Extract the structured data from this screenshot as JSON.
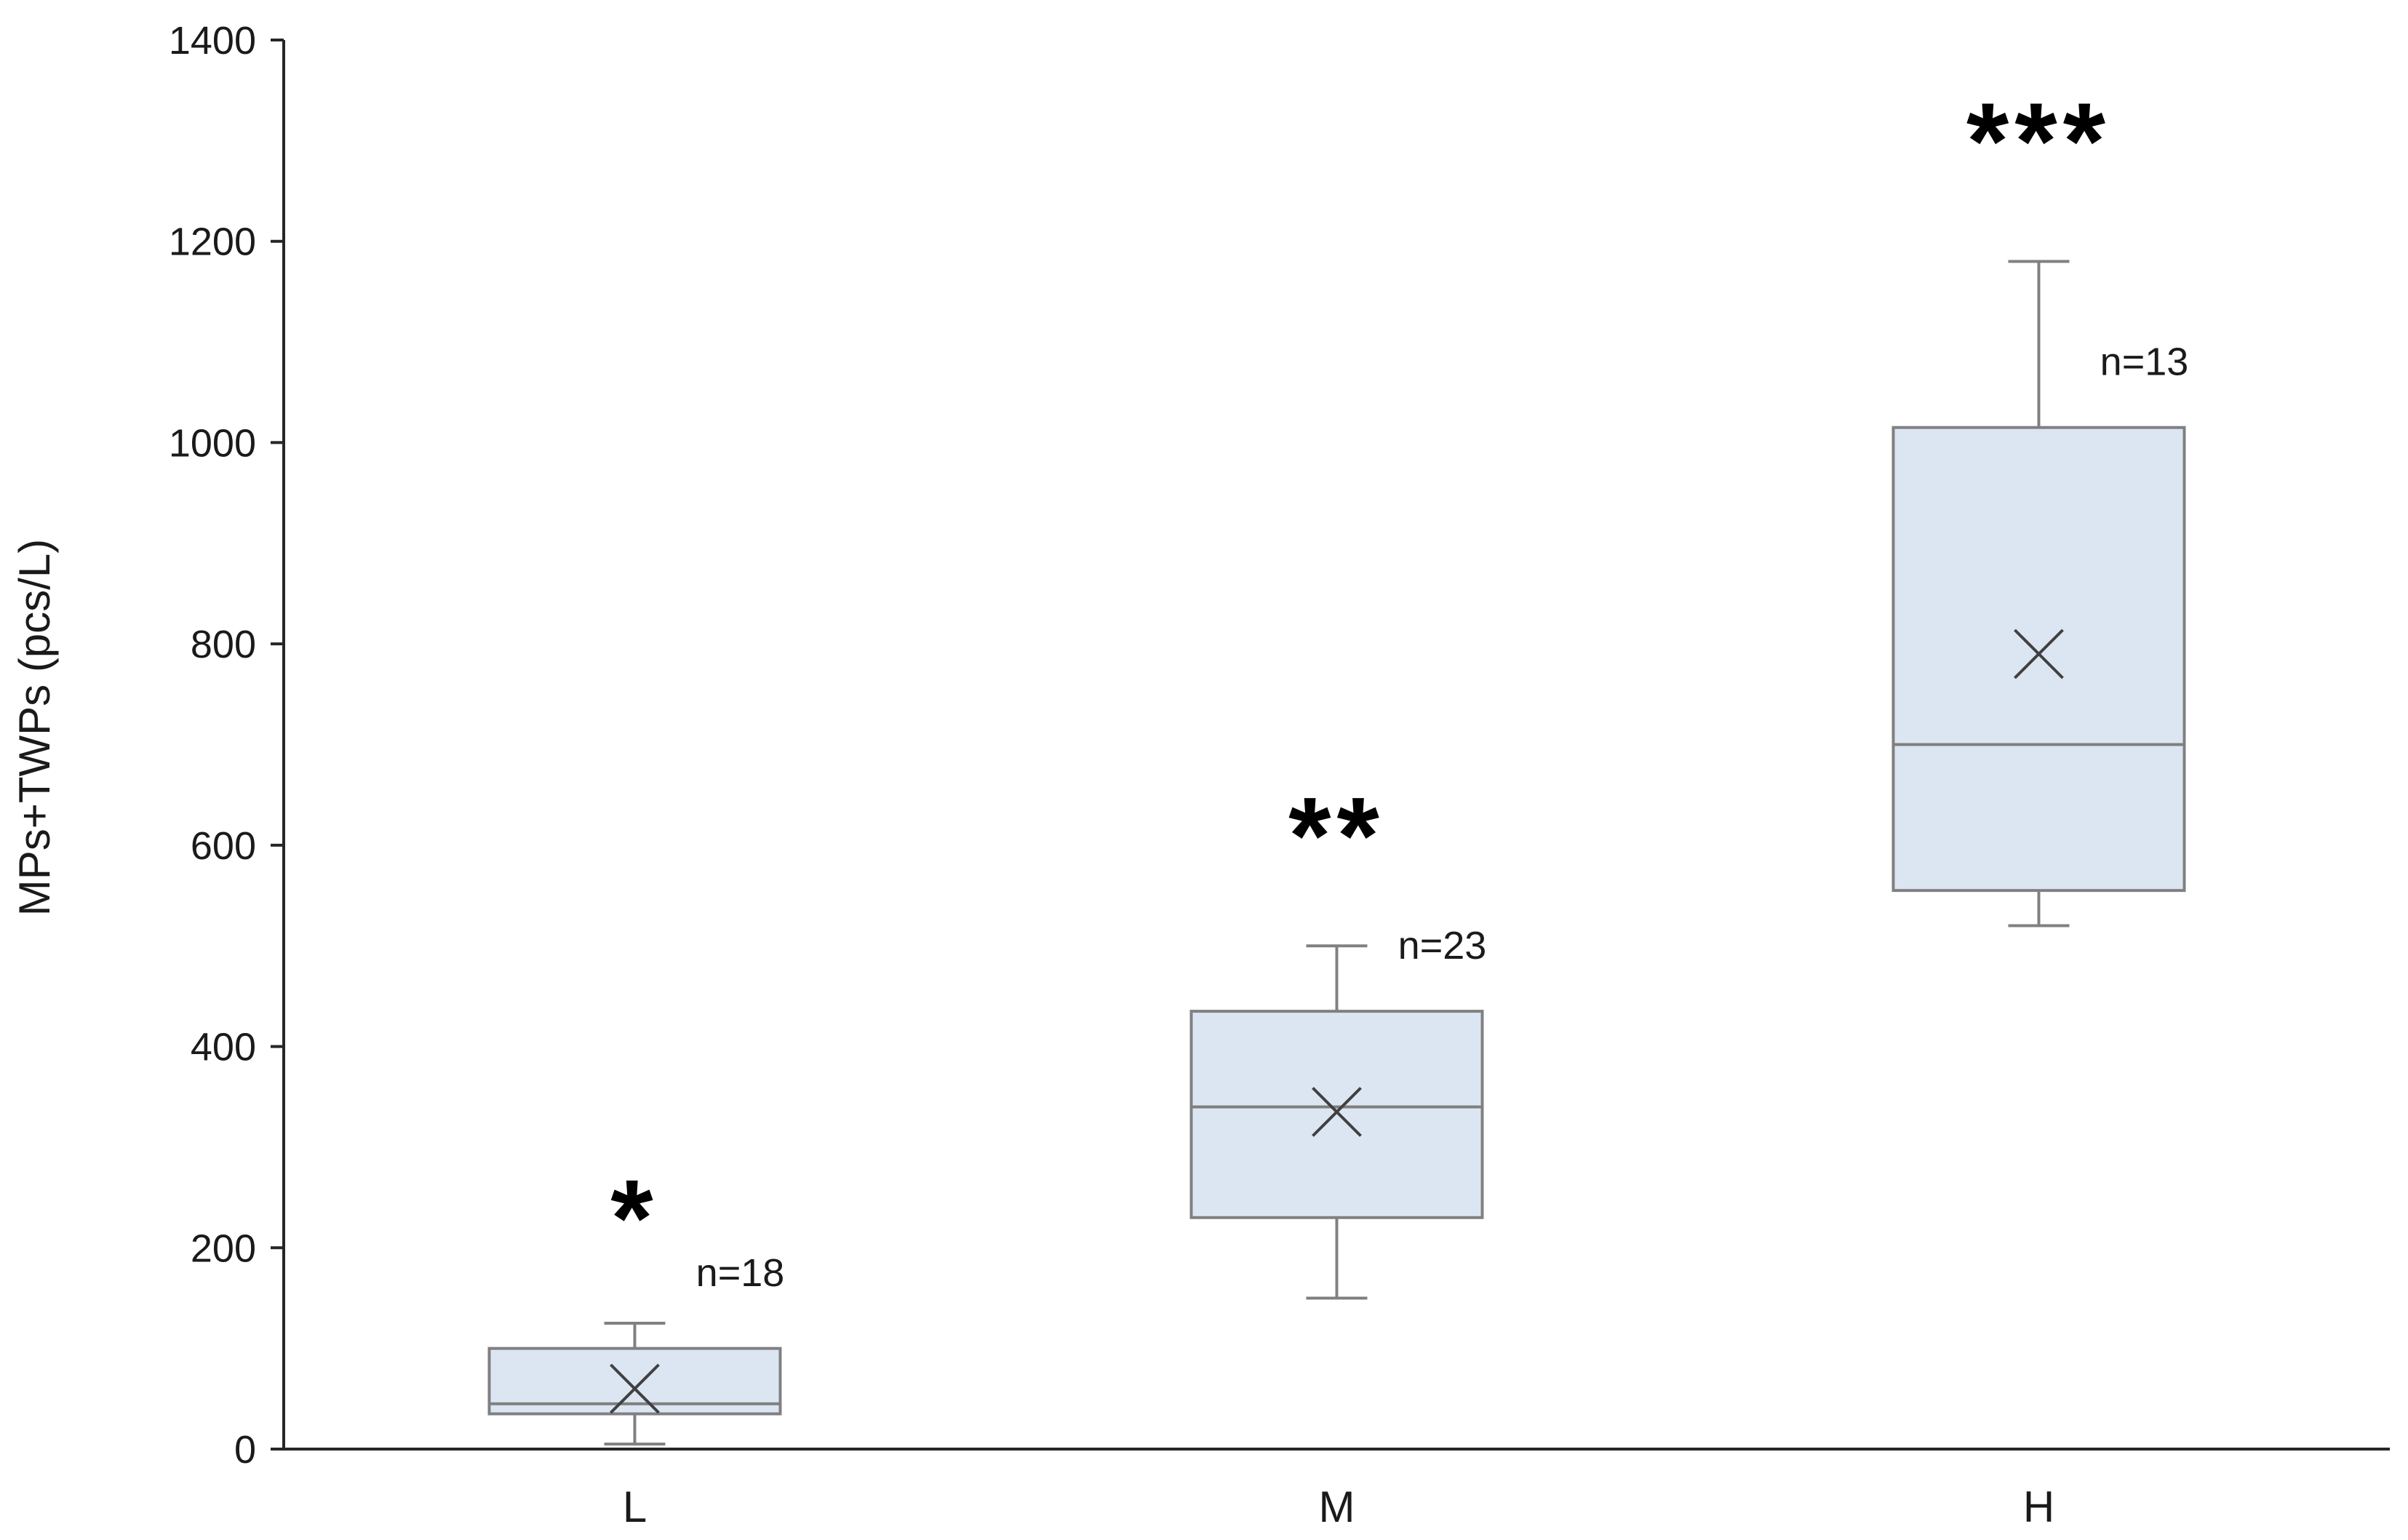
{
  "chart_data": {
    "type": "box",
    "title": "",
    "xlabel": "",
    "ylabel": "MPs+TWPs (pcs/L)",
    "ylim": [
      0,
      1400
    ],
    "yticks": [
      0,
      200,
      400,
      600,
      800,
      1000,
      1200,
      1400
    ],
    "grid": false,
    "legend_position": "none",
    "categories": [
      "L",
      "M",
      "H"
    ],
    "series": [
      {
        "name": "L",
        "min": 5,
        "q1": 35,
        "median": 45,
        "mean": 60,
        "q3": 100,
        "max": 125,
        "n": 18,
        "n_label": "n=18",
        "n_label_y": 175,
        "significance": "*",
        "significance_y": 250
      },
      {
        "name": "M",
        "min": 150,
        "q1": 230,
        "median": 340,
        "mean": 335,
        "q3": 435,
        "max": 500,
        "n": 23,
        "n_label": "n=23",
        "n_label_y": 500,
        "significance": "**",
        "significance_y": 630
      },
      {
        "name": "H",
        "min": 520,
        "q1": 555,
        "median": 700,
        "mean": 790,
        "q3": 1015,
        "max": 1180,
        "n": 13,
        "n_label": "n=13",
        "n_label_y": 1080,
        "significance": "***",
        "significance_y": 1320
      }
    ],
    "colors": {
      "box_fill": "#dce6f2",
      "box_stroke": "#808080",
      "median_line": "#7f7f7f",
      "whisker": "#808080",
      "mean_marker": "#404040",
      "axis": "#262626",
      "text": "#1a1a1a",
      "significance_text": "#000000"
    }
  }
}
